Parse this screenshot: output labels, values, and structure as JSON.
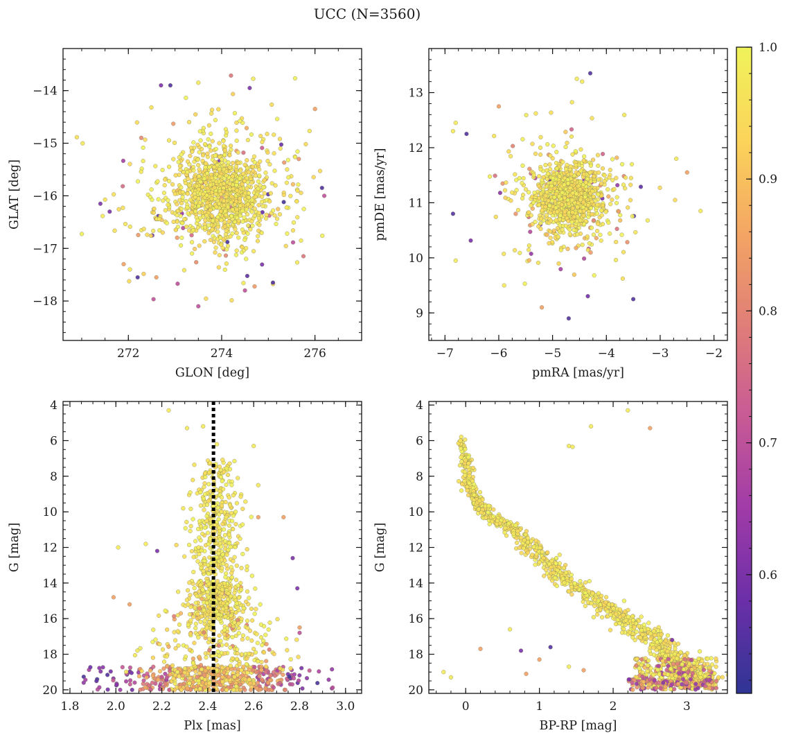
{
  "figure": {
    "title": "UCC (N=3560)"
  },
  "colorbar": {
    "range": [
      0.51,
      1.0
    ],
    "ticks": [
      0.6,
      0.7,
      0.8,
      0.9,
      1.0
    ],
    "tick_labels": [
      "0.6",
      "0.7",
      "0.8",
      "0.9",
      "1.0"
    ],
    "colormap": "plasma",
    "stops": [
      "#2f3594",
      "#6b2fa8",
      "#a03ba8",
      "#c85a95",
      "#e07e78",
      "#f4a663",
      "#fbd45a",
      "#f0f35a"
    ]
  },
  "chart_data": [
    {
      "type": "scatter",
      "xlabel": "GLON [deg]",
      "ylabel": "GLAT [deg]",
      "xlim": [
        270.6,
        277.0
      ],
      "ylim": [
        -18.75,
        -13.2
      ],
      "y_inverted": false,
      "xticks": [
        272,
        274,
        276
      ],
      "xtick_labels": [
        "272",
        "274",
        "276"
      ],
      "yticks": [
        -14,
        -15,
        -16,
        -17,
        -18
      ],
      "ytick_labels": [
        "−14",
        "−15",
        "−16",
        "−17",
        "−18"
      ],
      "x_minor_step": 0.5,
      "y_minor_step": 0.2,
      "cloud": {
        "cx": 273.95,
        "cy": -15.95,
        "sx": 0.95,
        "sy": 0.78,
        "n_core": 900,
        "n_halo": 260
      },
      "points": [
        {
          "x": 272.7,
          "y": -13.9,
          "c": 0.6
        },
        {
          "x": 272.9,
          "y": -13.9,
          "c": 0.55
        },
        {
          "x": 273.5,
          "y": -13.85,
          "c": 0.98
        },
        {
          "x": 274.6,
          "y": -13.95,
          "c": 0.6
        },
        {
          "x": 276.0,
          "y": -14.35,
          "c": 0.85
        },
        {
          "x": 271.4,
          "y": -16.15,
          "c": 0.6
        },
        {
          "x": 271.6,
          "y": -16.3,
          "c": 0.6
        },
        {
          "x": 276.15,
          "y": -15.85,
          "c": 0.55
        },
        {
          "x": 276.2,
          "y": -16.0,
          "c": 0.7
        },
        {
          "x": 272.2,
          "y": -17.55,
          "c": 0.55
        },
        {
          "x": 272.6,
          "y": -17.55,
          "c": 0.85
        },
        {
          "x": 273.5,
          "y": -18.1,
          "c": 0.7
        },
        {
          "x": 274.5,
          "y": -17.8,
          "c": 0.7
        },
        {
          "x": 275.1,
          "y": -17.65,
          "c": 0.55
        },
        {
          "x": 275.7,
          "y": -16.85,
          "c": 0.98
        },
        {
          "x": 271.9,
          "y": -17.3,
          "c": 0.85
        }
      ]
    },
    {
      "type": "scatter",
      "xlabel": "pmRA [mas/yr]",
      "ylabel": "pmDE [mas/yr]",
      "xlim": [
        -7.3,
        -1.75
      ],
      "ylim": [
        8.5,
        13.8
      ],
      "y_inverted": false,
      "xticks": [
        -7,
        -6,
        -5,
        -4,
        -3,
        -2
      ],
      "xtick_labels": [
        "−7",
        "−6",
        "−5",
        "−4",
        "−3",
        "−2"
      ],
      "yticks": [
        9,
        10,
        11,
        12,
        13
      ],
      "ytick_labels": [
        "9",
        "10",
        "11",
        "12",
        "13"
      ],
      "x_minor_step": 0.25,
      "y_minor_step": 0.2,
      "cloud": {
        "cx": -4.7,
        "cy": 11.1,
        "sx": 0.55,
        "sy": 0.5,
        "n_core": 900,
        "n_halo": 260
      },
      "points": [
        {
          "x": -4.3,
          "y": 13.35,
          "c": 0.55
        },
        {
          "x": -4.55,
          "y": 13.25,
          "c": 0.98
        },
        {
          "x": -4.45,
          "y": 13.2,
          "c": 0.98
        },
        {
          "x": -6.85,
          "y": 12.3,
          "c": 0.98
        },
        {
          "x": -6.8,
          "y": 12.45,
          "c": 0.98
        },
        {
          "x": -6.6,
          "y": 12.25,
          "c": 0.55
        },
        {
          "x": -6.85,
          "y": 10.8,
          "c": 0.55
        },
        {
          "x": -6.8,
          "y": 9.95,
          "c": 0.98
        },
        {
          "x": -4.7,
          "y": 8.9,
          "c": 0.55
        },
        {
          "x": -5.2,
          "y": 9.1,
          "c": 0.85
        },
        {
          "x": -3.5,
          "y": 9.25,
          "c": 0.55
        },
        {
          "x": -2.25,
          "y": 10.85,
          "c": 0.98
        },
        {
          "x": -2.5,
          "y": 11.55,
          "c": 0.85
        },
        {
          "x": -2.7,
          "y": 11.8,
          "c": 0.98
        },
        {
          "x": -6.0,
          "y": 12.75,
          "c": 0.85
        },
        {
          "x": -5.9,
          "y": 9.5,
          "c": 0.98
        }
      ]
    },
    {
      "type": "scatter",
      "xlabel": "Plx [mas]",
      "ylabel": "G [mag]",
      "xlim": [
        1.77,
        3.07
      ],
      "ylim": [
        20.2,
        3.8
      ],
      "y_inverted": true,
      "xticks": [
        1.8,
        2.0,
        2.2,
        2.4,
        2.6,
        2.8,
        3.0
      ],
      "xtick_labels": [
        "1.8",
        "2.0",
        "2.2",
        "2.4",
        "2.6",
        "2.8",
        "3.0"
      ],
      "yticks": [
        4,
        6,
        8,
        10,
        12,
        14,
        16,
        18,
        20
      ],
      "ytick_labels": [
        "4",
        "6",
        "8",
        "10",
        "12",
        "14",
        "16",
        "18",
        "20"
      ],
      "x_minor_step": 0.05,
      "y_minor_step": 0.5,
      "vline": 2.425,
      "points": [
        {
          "x": 2.23,
          "y": 4.3,
          "c": 0.98
        },
        {
          "x": 2.31,
          "y": 5.3,
          "c": 0.98
        },
        {
          "x": 2.38,
          "y": 5.2,
          "c": 0.98
        },
        {
          "x": 2.44,
          "y": 6.2,
          "c": 0.98
        },
        {
          "x": 2.6,
          "y": 6.3,
          "c": 0.98
        },
        {
          "x": 2.62,
          "y": 8.5,
          "c": 0.98
        },
        {
          "x": 2.62,
          "y": 10.3,
          "c": 0.85
        },
        {
          "x": 2.73,
          "y": 10.3,
          "c": 0.85
        },
        {
          "x": 2.01,
          "y": 12.0,
          "c": 0.98
        },
        {
          "x": 2.13,
          "y": 11.8,
          "c": 0.98
        },
        {
          "x": 2.18,
          "y": 12.2,
          "c": 0.6
        },
        {
          "x": 1.99,
          "y": 14.8,
          "c": 0.85
        },
        {
          "x": 2.06,
          "y": 15.2,
          "c": 0.85
        },
        {
          "x": 2.77,
          "y": 12.6,
          "c": 0.6
        },
        {
          "x": 2.79,
          "y": 14.3,
          "c": 0.6
        },
        {
          "x": 2.8,
          "y": 16.5,
          "c": 0.85
        },
        {
          "x": 2.8,
          "y": 16.8,
          "c": 0.7
        }
      ]
    },
    {
      "type": "scatter",
      "xlabel": "BP-RP [mag]",
      "ylabel": "G [mag]",
      "xlim": [
        -0.5,
        3.55
      ],
      "ylim": [
        20.2,
        3.8
      ],
      "y_inverted": true,
      "xticks": [
        0,
        1,
        2,
        3
      ],
      "xtick_labels": [
        "0",
        "1",
        "2",
        "3"
      ],
      "yticks": [
        4,
        6,
        8,
        10,
        12,
        14,
        16,
        18,
        20
      ],
      "ytick_labels": [
        "4",
        "6",
        "8",
        "10",
        "12",
        "14",
        "16",
        "18",
        "20"
      ],
      "x_minor_step": 0.2,
      "y_minor_step": 0.5,
      "sequence": [
        [
          -0.1,
          5.8
        ],
        [
          0.0,
          7.0
        ],
        [
          0.05,
          8.5
        ],
        [
          0.15,
          9.6
        ],
        [
          0.4,
          10.4
        ],
        [
          0.7,
          11.2
        ],
        [
          1.0,
          12.4
        ],
        [
          1.3,
          13.6
        ],
        [
          1.7,
          14.8
        ],
        [
          2.1,
          15.9
        ],
        [
          2.5,
          17.0
        ],
        [
          2.8,
          18.1
        ],
        [
          3.0,
          19.0
        ],
        [
          3.2,
          19.6
        ]
      ],
      "points": [
        {
          "x": 2.2,
          "y": 4.3,
          "c": 0.98
        },
        {
          "x": 1.7,
          "y": 5.2,
          "c": 0.98
        },
        {
          "x": 2.5,
          "y": 5.3,
          "c": 0.85
        },
        {
          "x": 1.4,
          "y": 6.3,
          "c": 0.98
        },
        {
          "x": 1.45,
          "y": 6.35,
          "c": 0.98
        },
        {
          "x": -0.2,
          "y": 19.3,
          "c": 0.98
        },
        {
          "x": -0.3,
          "y": 19.0,
          "c": 0.98
        },
        {
          "x": 0.2,
          "y": 17.7,
          "c": 0.85
        },
        {
          "x": 0.6,
          "y": 16.6,
          "c": 0.98
        },
        {
          "x": 0.75,
          "y": 17.8,
          "c": 0.6
        },
        {
          "x": 1.0,
          "y": 18.3,
          "c": 0.85
        },
        {
          "x": 1.15,
          "y": 17.6,
          "c": 0.55
        },
        {
          "x": 1.4,
          "y": 18.7,
          "c": 0.98
        },
        {
          "x": 0.82,
          "y": 19.1,
          "c": 0.85
        },
        {
          "x": 1.6,
          "y": 18.9,
          "c": 0.85
        },
        {
          "x": 2.8,
          "y": 17.2,
          "c": 0.6
        }
      ]
    }
  ]
}
